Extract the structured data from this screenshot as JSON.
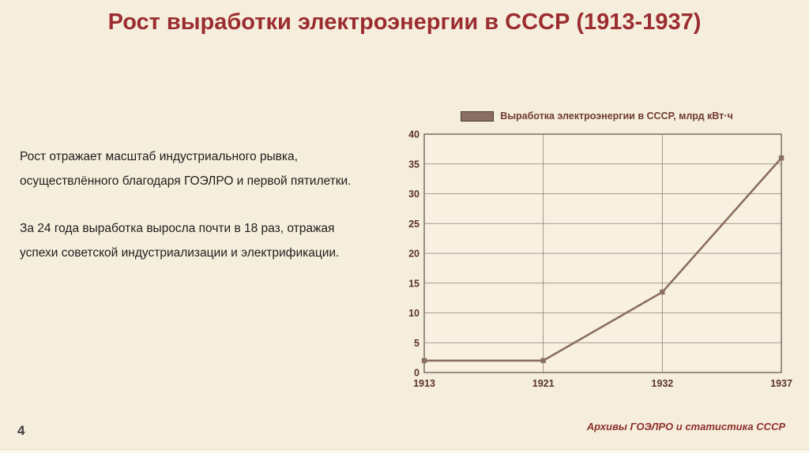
{
  "slide": {
    "title": "Рост выработки электроэнергии в СССР (1913-1937)",
    "body_paragraphs": [
      "Рост отражает масштаб индустриального рывка, осуществлённого благодаря ГОЭЛРО и первой пятилетки.",
      "За 24 года выработка выросла почти в 18 раз, отражая успехи советской индустриализации и электрификации."
    ],
    "source": "Архивы ГОЭЛРО и статистика СССР",
    "page_number": "4"
  },
  "chart_data": {
    "type": "line",
    "legend": "Выработка электроэнергии в СССР, млрд кВт·ч",
    "categories": [
      "1913",
      "1921",
      "1932",
      "1937"
    ],
    "values": [
      2,
      2,
      13.5,
      36
    ],
    "title": "",
    "xlabel": "",
    "ylabel": "",
    "ylim": [
      0,
      40
    ],
    "ytick_step": 5,
    "grid": true,
    "legend_position": "top",
    "marker": "square",
    "line_color": "#8a6f62",
    "grid_color": "#8d7f71",
    "border_color": "#5c4f45",
    "plot_bg": "#f8f1e2"
  },
  "colors": {
    "bg": "#f6eedd",
    "title": "#9b2d30",
    "body": "#1d1d1b",
    "tick": "#5a332b",
    "source": "#8c2f2a",
    "line": "#8a6f62",
    "grid": "#8d7f71",
    "border": "#5c4f45",
    "plotbg": "#f8f1e2",
    "page": "#3c3c3c"
  }
}
